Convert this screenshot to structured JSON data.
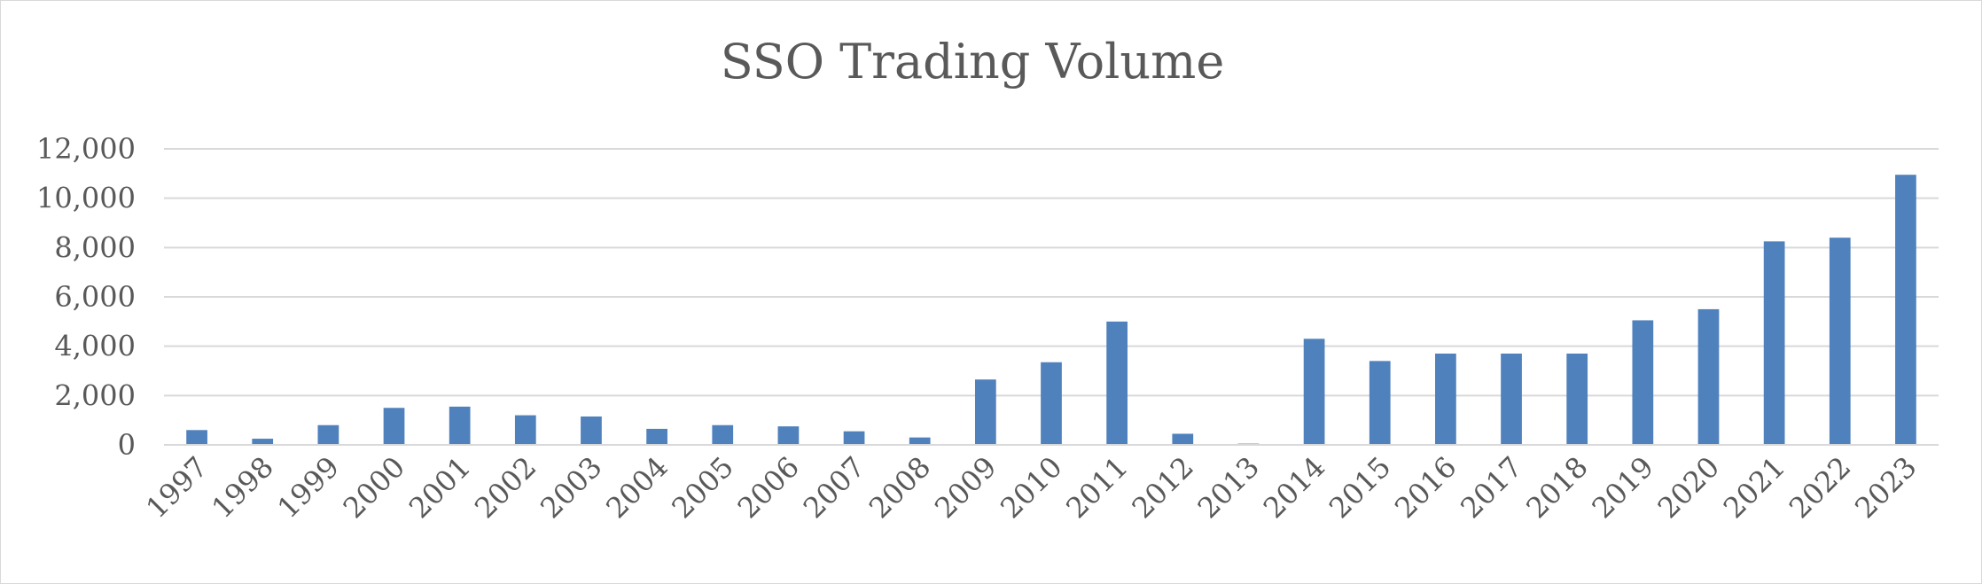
{
  "chart_data": {
    "type": "bar",
    "title": "SSO Trading Volume",
    "xlabel": "",
    "ylabel": "",
    "categories": [
      "1997",
      "1998",
      "1999",
      "2000",
      "2001",
      "2002",
      "2003",
      "2004",
      "2005",
      "2006",
      "2007",
      "2008",
      "2009",
      "2010",
      "2011",
      "2012",
      "2013",
      "2014",
      "2015",
      "2016",
      "2017",
      "2018",
      "2019",
      "2020",
      "2021",
      "2022",
      "2023"
    ],
    "values": [
      600,
      250,
      800,
      1500,
      1550,
      1200,
      1150,
      650,
      800,
      750,
      550,
      300,
      2650,
      3350,
      5000,
      450,
      50,
      4300,
      3400,
      3700,
      3700,
      3700,
      5050,
      5500,
      8250,
      8400,
      10950
    ],
    "ylim": [
      0,
      12000
    ],
    "yticks": [
      "0",
      "2,000",
      "4,000",
      "6,000",
      "8,000",
      "10,000",
      "12,000"
    ],
    "grid": true,
    "legend": "none",
    "bar_color": "#4f81bd",
    "grid_color": "#d9d9d9"
  }
}
